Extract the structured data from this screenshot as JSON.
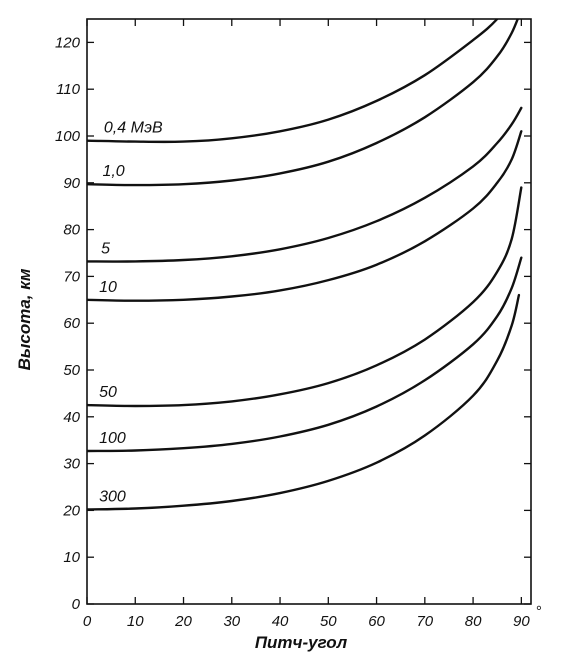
{
  "chart_data": {
    "type": "line",
    "title": "",
    "xlabel": "Питч-угол",
    "ylabel": "Высота, км",
    "xlim": [
      0,
      92
    ],
    "ylim": [
      0,
      125
    ],
    "x_unit": "°",
    "x_ticks": [
      0,
      10,
      20,
      30,
      40,
      50,
      60,
      70,
      80,
      90
    ],
    "y_ticks": [
      0,
      10,
      20,
      30,
      40,
      50,
      60,
      70,
      80,
      90,
      100,
      110,
      120
    ],
    "grid": false,
    "series": [
      {
        "name": "0,4 МэВ",
        "x": [
          0,
          10,
          20,
          30,
          40,
          50,
          60,
          70,
          80,
          85,
          88.5
        ],
        "y": [
          99,
          98.8,
          98.8,
          99.5,
          101,
          103.5,
          107.5,
          113,
          120.5,
          125,
          130
        ]
      },
      {
        "name": "1,0",
        "x": [
          0,
          10,
          20,
          30,
          40,
          50,
          60,
          70,
          80,
          85,
          88,
          90
        ],
        "y": [
          89.7,
          89.5,
          89.7,
          90.5,
          92,
          94.5,
          98.5,
          104,
          111.5,
          117,
          122,
          127
        ]
      },
      {
        "name": "5",
        "x": [
          0,
          10,
          20,
          30,
          40,
          50,
          60,
          70,
          80,
          85,
          88,
          90
        ],
        "y": [
          73.2,
          73.2,
          73.5,
          74.3,
          75.8,
          78.2,
          81.8,
          86.8,
          93.5,
          98.5,
          102.5,
          106
        ]
      },
      {
        "name": "10",
        "x": [
          0,
          10,
          20,
          30,
          40,
          50,
          60,
          70,
          80,
          85,
          88,
          90
        ],
        "y": [
          65,
          64.8,
          65,
          65.7,
          67,
          69.2,
          72.5,
          77.5,
          84.5,
          90,
          95,
          101
        ]
      },
      {
        "name": "50",
        "x": [
          0,
          10,
          20,
          30,
          40,
          50,
          60,
          70,
          80,
          85,
          88,
          90
        ],
        "y": [
          42.5,
          42.3,
          42.5,
          43.3,
          44.8,
          47.2,
          51,
          56.5,
          64.5,
          71,
          78,
          89
        ]
      },
      {
        "name": "100",
        "x": [
          0,
          10,
          20,
          30,
          40,
          50,
          60,
          70,
          80,
          85,
          88,
          90
        ],
        "y": [
          32.7,
          32.8,
          33.3,
          34.2,
          35.8,
          38.3,
          42.2,
          47.8,
          55.5,
          61.5,
          67.5,
          74
        ]
      },
      {
        "name": "300",
        "x": [
          0,
          10,
          20,
          30,
          40,
          50,
          60,
          70,
          80,
          85,
          88,
          89.5
        ],
        "y": [
          20.2,
          20.4,
          21,
          22,
          23.7,
          26.3,
          30.2,
          36,
          44.5,
          52,
          59.5,
          66
        ]
      }
    ]
  }
}
